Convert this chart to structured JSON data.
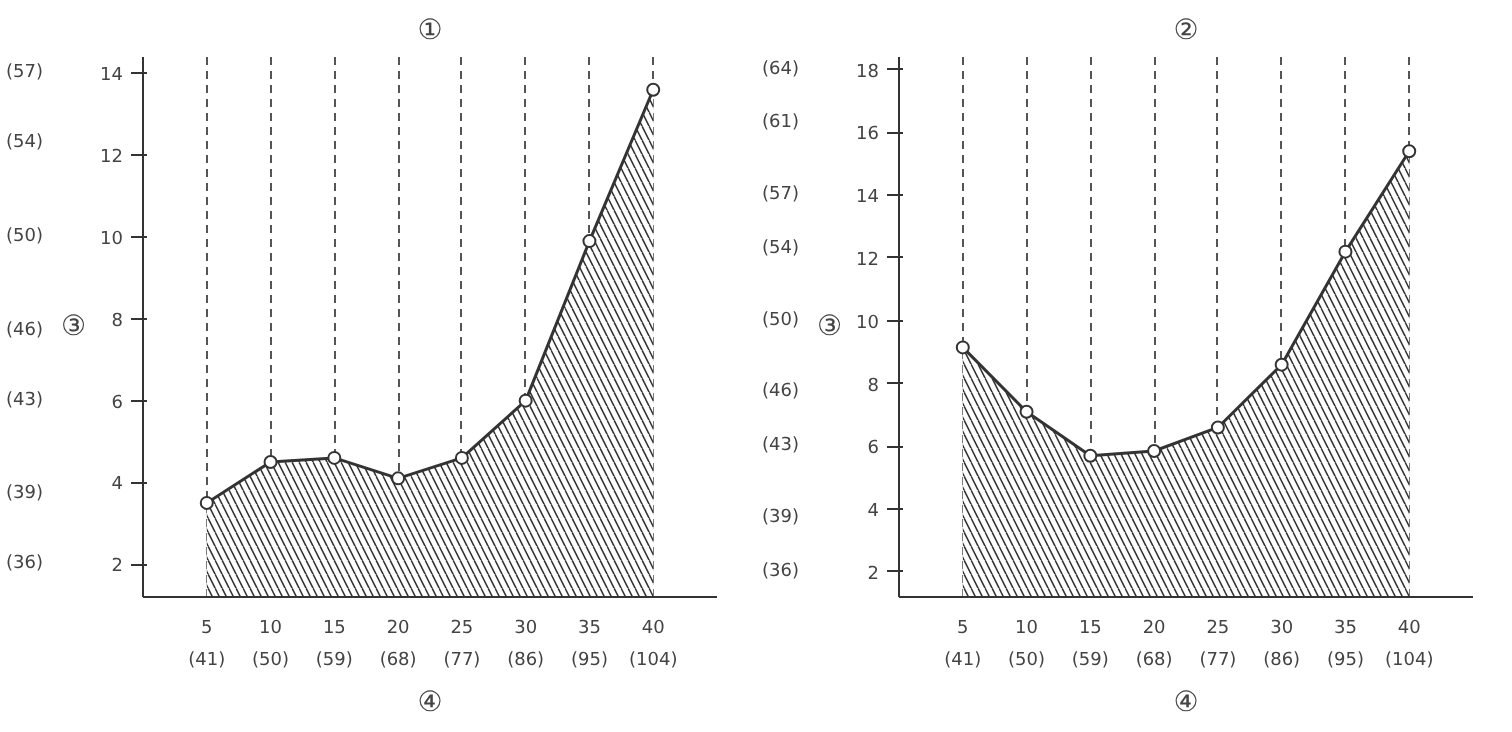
{
  "chart_data": [
    {
      "type": "area",
      "title": "①",
      "xlabel": "④",
      "ylabel": "③",
      "x": [
        5,
        10,
        15,
        20,
        25,
        30,
        35,
        40
      ],
      "series": [
        {
          "color": "#333333",
          "values": [
            3.5,
            4.5,
            4.6,
            4.1,
            4.6,
            6.0,
            9.9,
            13.6
          ]
        }
      ],
      "xlim": [
        0,
        45
      ],
      "ylim": [
        1.2,
        14.4
      ],
      "xticks": [
        5,
        10,
        15,
        20,
        25,
        30,
        35,
        40
      ],
      "x2lim": [
        32,
        113
      ],
      "x2ticks": [
        {
          "value": 41,
          "label": "(41)"
        },
        {
          "value": 50,
          "label": "(50)"
        },
        {
          "value": 59,
          "label": "(59)"
        },
        {
          "value": 68,
          "label": "(68)"
        },
        {
          "value": 77,
          "label": "(77)"
        },
        {
          "value": 86,
          "label": "(86)"
        },
        {
          "value": 95,
          "label": "(95)"
        },
        {
          "value": 104,
          "label": "(104)"
        }
      ],
      "yticks": [
        2,
        4,
        6,
        8,
        10,
        12,
        14
      ],
      "y2lim": [
        34.6,
        57.7
      ],
      "y2ticks": [
        {
          "value": 36,
          "label": "(36)"
        },
        {
          "value": 39,
          "label": "(39)"
        },
        {
          "value": 43,
          "label": "(43)"
        },
        {
          "value": 46,
          "label": "(46)"
        },
        {
          "value": 50,
          "label": "(50)"
        },
        {
          "value": 54,
          "label": "(54)"
        },
        {
          "value": 57,
          "label": "(57)"
        }
      ],
      "grid": "x",
      "marker": "circle",
      "line_style": "solid"
    },
    {
      "type": "area",
      "title": "②",
      "xlabel": "④",
      "ylabel": "③",
      "x": [
        5,
        10,
        15,
        20,
        25,
        30,
        35,
        40
      ],
      "series": [
        {
          "color": "#333333",
          "values": [
            9.15,
            7.1,
            5.7,
            5.85,
            6.6,
            8.6,
            12.2,
            15.4
          ]
        }
      ],
      "xlim": [
        0,
        45
      ],
      "ylim": [
        1.2,
        18.4
      ],
      "xticks": [
        5,
        10,
        15,
        20,
        25,
        30,
        35,
        40
      ],
      "x2lim": [
        32,
        113
      ],
      "x2ticks": [
        {
          "value": 41,
          "label": "(41)"
        },
        {
          "value": 50,
          "label": "(50)"
        },
        {
          "value": 59,
          "label": "(59)"
        },
        {
          "value": 68,
          "label": "(68)"
        },
        {
          "value": 77,
          "label": "(77)"
        },
        {
          "value": 86,
          "label": "(86)"
        },
        {
          "value": 95,
          "label": "(95)"
        },
        {
          "value": 104,
          "label": "(104)"
        }
      ],
      "yticks": [
        2,
        4,
        6,
        8,
        10,
        12,
        14,
        16,
        18
      ],
      "y2lim": [
        34.6,
        64.7
      ],
      "y2ticks": [
        {
          "value": 36,
          "label": "(36)"
        },
        {
          "value": 39,
          "label": "(39)"
        },
        {
          "value": 43,
          "label": "(43)"
        },
        {
          "value": 46,
          "label": "(46)"
        },
        {
          "value": 50,
          "label": "(50)"
        },
        {
          "value": 54,
          "label": "(54)"
        },
        {
          "value": 57,
          "label": "(57)"
        },
        {
          "value": 61,
          "label": "(61)"
        },
        {
          "value": 64,
          "label": "(64)"
        }
      ],
      "grid": "x",
      "marker": "circle",
      "line_style": "solid"
    }
  ]
}
